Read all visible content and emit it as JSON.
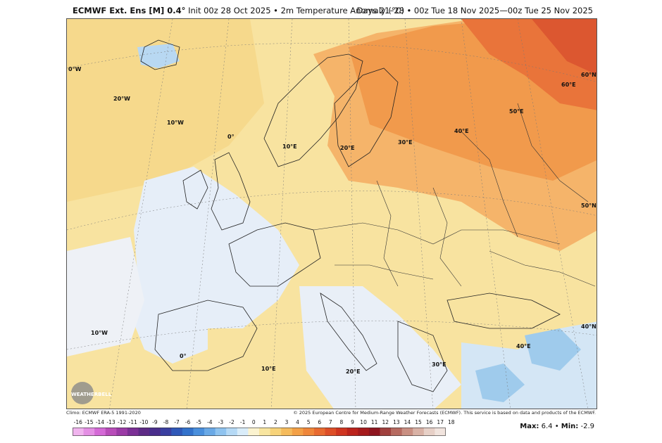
{
  "header": {
    "model": "ECMWF Ext. Ens [M] 0.4°",
    "init": "Init 00z 28 Oct 2025 • 2m Temperature Anomaly (°C)",
    "valid": "Days 21–28 • 00z Tue 18 Nov 2025—00z Tue 25 Nov 2025"
  },
  "footer": {
    "climo": "Climo: ECMWF ERA-5 1991-2020",
    "copyright": "© 2025 European Centre for Medium-Range Weather Forecasts (ECMWF). This service is based on data and products of the ECMWF."
  },
  "stats": {
    "max_label": "Max:",
    "max_value": "6.4",
    "sep": "•",
    "min_label": "Min:",
    "min_value": "-2.9"
  },
  "logo": {
    "text": "WEATHERBELL"
  },
  "colorbar": {
    "ticks": [
      "-16",
      "-15",
      "-14",
      "-13",
      "-12",
      "-11",
      "-10",
      "-9",
      "-8",
      "-7",
      "-6",
      "-5",
      "-4",
      "-3",
      "-2",
      "-1",
      "0",
      "1",
      "2",
      "3",
      "4",
      "5",
      "6",
      "7",
      "8",
      "9",
      "10",
      "11",
      "12",
      "13",
      "14",
      "15",
      "16",
      "17",
      "18"
    ],
    "colors": [
      "#f0b4ee",
      "#e48fe4",
      "#d469d6",
      "#b84cb9",
      "#9b3aa6",
      "#7b2f95",
      "#5e2b86",
      "#4a2e8c",
      "#3a3fa0",
      "#2f58b8",
      "#3372cb",
      "#4a8fdc",
      "#6aa9e6",
      "#8fc3ef",
      "#b5d9f5",
      "#d9ecf9",
      "#fbf3d0",
      "#f8e5a0",
      "#f7d37a",
      "#f5bb5c",
      "#f3a046",
      "#ef863a",
      "#e86a30",
      "#dd4e27",
      "#cf3520",
      "#bb231c",
      "#a51a1c",
      "#8e151f",
      "#a0403e",
      "#b66a60",
      "#c98f82",
      "#d9b2a6",
      "#e7d0c7",
      "#f1e4de"
    ]
  },
  "map_labels": [
    {
      "id": "lon-0w-top",
      "text": "0°W"
    },
    {
      "id": "lon-20w",
      "text": "20°W"
    },
    {
      "id": "lon-10w",
      "text": "10°W"
    },
    {
      "id": "lon-0",
      "text": "0°"
    },
    {
      "id": "lon-10e-n",
      "text": "10°E"
    },
    {
      "id": "lon-20e-n",
      "text": "20°E"
    },
    {
      "id": "lon-30e-n",
      "text": "30°E"
    },
    {
      "id": "lon-40e",
      "text": "40°E"
    },
    {
      "id": "lon-50e",
      "text": "50°E"
    },
    {
      "id": "lon-60e",
      "text": "60°E"
    },
    {
      "id": "lat-60n",
      "text": "60°N"
    },
    {
      "id": "lat-50n",
      "text": "50°N"
    },
    {
      "id": "lat-40n",
      "text": "40°N"
    },
    {
      "id": "lon-10w-s",
      "text": "10°W"
    },
    {
      "id": "lon-0-s",
      "text": "0°"
    },
    {
      "id": "lon-10e-s",
      "text": "10°E"
    },
    {
      "id": "lon-20e-s",
      "text": "20°E"
    },
    {
      "id": "lon-30e-s",
      "text": "30°E"
    },
    {
      "id": "lon-40e-s",
      "text": "40°E"
    }
  ]
}
